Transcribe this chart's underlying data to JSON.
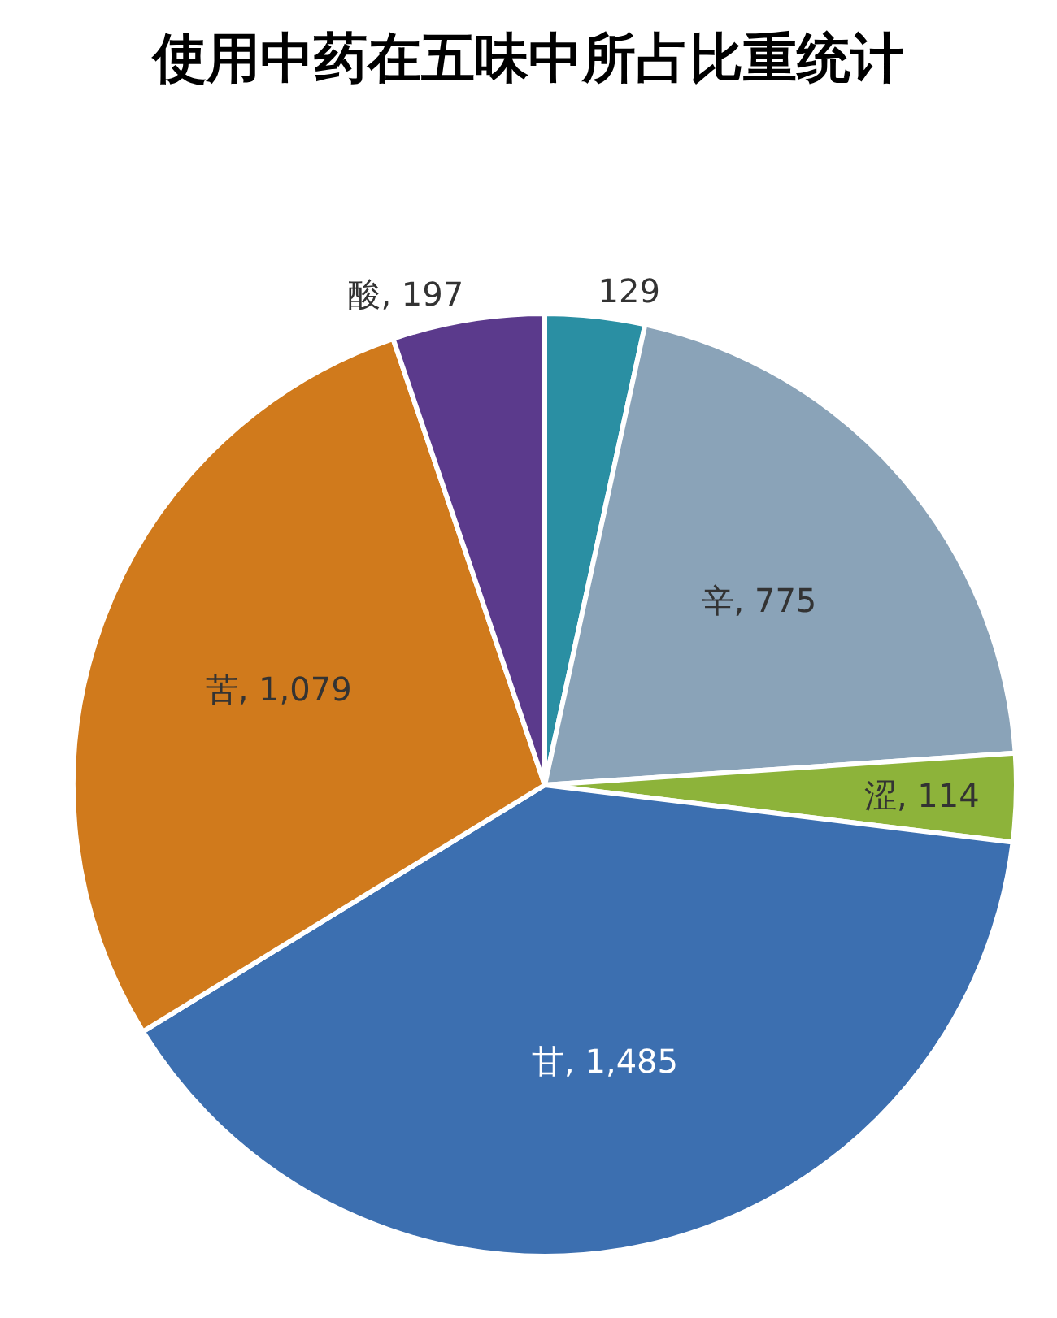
{
  "chart_data": {
    "type": "pie",
    "title": "使用中药在五味中所占比重统计",
    "categories": [
      null,
      "辛",
      "涩",
      "甘",
      "苦",
      "酸"
    ],
    "values": [
      129,
      775,
      114,
      1485,
      1079,
      197
    ],
    "colors": [
      "#2a8fa3",
      "#8aa3b8",
      "#8db33a",
      "#3c6fb0",
      "#d07a1c",
      "#5b3a8c"
    ],
    "value_labels": [
      "129",
      "775",
      "114",
      "1,485",
      "1,079",
      "197"
    ],
    "legend": false
  }
}
